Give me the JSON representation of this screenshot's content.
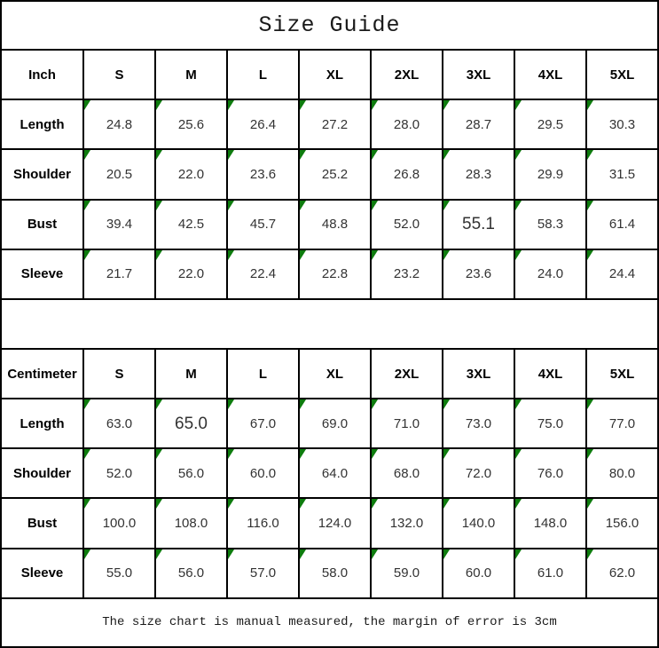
{
  "title": "Size Guide",
  "footer": "The size chart is manual measured, the margin of error is 3cm",
  "colors": {
    "flag_green": "#0e7c0e",
    "border": "#000000",
    "number_text": "#333333"
  },
  "tables": [
    {
      "unit_label": "Inch",
      "sizes": [
        "S",
        "M",
        "L",
        "XL",
        "2XL",
        "3XL",
        "4XL",
        "5XL"
      ],
      "rows": [
        {
          "label": "Length",
          "values": [
            "24.8",
            "25.6",
            "26.4",
            "27.2",
            "28.0",
            "28.7",
            "29.5",
            "30.3"
          ]
        },
        {
          "label": "Shoulder",
          "values": [
            "20.5",
            "22.0",
            "23.6",
            "25.2",
            "26.8",
            "28.3",
            "29.9",
            "31.5"
          ]
        },
        {
          "label": "Bust",
          "values": [
            "39.4",
            "42.5",
            "45.7",
            "48.8",
            "52.0",
            "55.1",
            "58.3",
            "61.4"
          ]
        },
        {
          "label": "Sleeve",
          "values": [
            "21.7",
            "22.0",
            "22.4",
            "22.8",
            "23.2",
            "23.6",
            "24.0",
            "24.4"
          ]
        }
      ],
      "emphasized_cells": [
        {
          "row": 2,
          "col": 5
        }
      ]
    },
    {
      "unit_label": "Centimeter",
      "sizes": [
        "S",
        "M",
        "L",
        "XL",
        "2XL",
        "3XL",
        "4XL",
        "5XL"
      ],
      "rows": [
        {
          "label": "Length",
          "values": [
            "63.0",
            "65.0",
            "67.0",
            "69.0",
            "71.0",
            "73.0",
            "75.0",
            "77.0"
          ]
        },
        {
          "label": "Shoulder",
          "values": [
            "52.0",
            "56.0",
            "60.0",
            "64.0",
            "68.0",
            "72.0",
            "76.0",
            "80.0"
          ]
        },
        {
          "label": "Bust",
          "values": [
            "100.0",
            "108.0",
            "116.0",
            "124.0",
            "132.0",
            "140.0",
            "148.0",
            "156.0"
          ]
        },
        {
          "label": "Sleeve",
          "values": [
            "55.0",
            "56.0",
            "57.0",
            "58.0",
            "59.0",
            "60.0",
            "61.0",
            "62.0"
          ]
        }
      ],
      "emphasized_cells": [
        {
          "row": 0,
          "col": 1
        }
      ]
    }
  ]
}
